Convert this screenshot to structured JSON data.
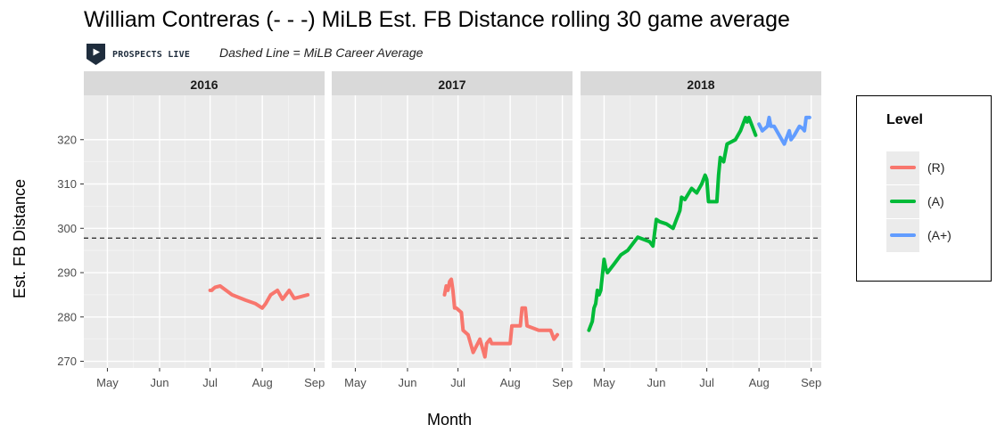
{
  "header": {
    "title": "William Contreras (- - -) MiLB Est. FB Distance rolling 30 game average",
    "subtitle": "Dashed Line = MiLB Career Average",
    "logo_text": "PROSPECTS LIVE"
  },
  "legend": {
    "title": "Level",
    "items": [
      {
        "label": "(R)",
        "color": "#F8766D"
      },
      {
        "label": "(A)",
        "color": "#00BA38"
      },
      {
        "label": "(A+)",
        "color": "#619CFF"
      }
    ]
  },
  "chart_data": {
    "type": "line",
    "facet_by": "year",
    "facets": [
      "2016",
      "2017",
      "2018"
    ],
    "xlabel": "Month",
    "ylabel": "Est. FB Distance",
    "x_ticks": [
      "May",
      "Jun",
      "Jul",
      "Aug",
      "Sep"
    ],
    "x_tick_days": [
      121,
      152,
      182,
      213,
      244
    ],
    "xlim_days": [
      107,
      250
    ],
    "y_ticks": [
      270,
      280,
      290,
      300,
      310,
      320
    ],
    "ylim": [
      268.5,
      330
    ],
    "career_average": 297.8,
    "grid": true,
    "legend_position": "right",
    "series": [
      {
        "facet": "2016",
        "level": "(R)",
        "color": "#F8766D",
        "x": [
          "Jul 1",
          "Jul 2",
          "Jul 3",
          "Jul 4",
          "Jul 7",
          "Jul 14",
          "Jul 22",
          "Jul 28",
          "Aug 1",
          "Aug 3",
          "Aug 6",
          "Aug 10",
          "Aug 13",
          "Aug 17",
          "Aug 20",
          "Aug 25",
          "Aug 28"
        ],
        "y": [
          286,
          286,
          286.4,
          286.7,
          287,
          285,
          283.8,
          283,
          282,
          283,
          285,
          286,
          284,
          286,
          284.2,
          284.7,
          285
        ]
      },
      {
        "facet": "2017",
        "level": "(R)",
        "color": "#F8766D",
        "x": [
          "Jun 23",
          "Jun 24",
          "Jun 25",
          "Jun 26",
          "Jun 27",
          "Jun 28",
          "Jun 29",
          "Jun 30",
          "Jul 3",
          "Jul 4",
          "Jul 7",
          "Jul 10",
          "Jul 14",
          "Jul 17",
          "Jul 18",
          "Jul 20",
          "Jul 21",
          "Jul 22",
          "Jul 25",
          "Aug 1",
          "Aug 2",
          "Aug 4",
          "Aug 7",
          "Aug 8",
          "Aug 10",
          "Aug 11",
          "Aug 18",
          "Aug 25",
          "Aug 27",
          "Aug 29"
        ],
        "y": [
          285,
          287,
          286,
          288,
          288.5,
          286,
          282,
          282,
          281,
          277,
          276,
          272,
          275,
          271,
          274,
          275,
          274,
          274,
          274,
          274,
          278,
          278,
          278,
          282,
          282,
          278,
          277,
          277,
          275,
          276
        ]
      },
      {
        "facet": "2018",
        "level": "(A)",
        "color": "#00BA38",
        "x": [
          "Apr 22",
          "Apr 23",
          "Apr 24",
          "Apr 25",
          "Apr 26",
          "Apr 27",
          "Apr 28",
          "Apr 29",
          "May 1",
          "May 2",
          "May 3",
          "May 7",
          "May 11",
          "May 15",
          "May 17",
          "May 19",
          "May 21",
          "May 28",
          "May 30",
          "Jun 1",
          "Jun 3",
          "Jun 7",
          "Jun 11",
          "Jun 14",
          "Jun 15",
          "Jun 16",
          "Jun 18",
          "Jun 22",
          "Jun 25",
          "Jun 28",
          "Jun 30",
          "Jul 1",
          "Jul 2",
          "Jul 3",
          "Jul 4",
          "Jul 7",
          "Jul 8",
          "Jul 9",
          "Jul 11",
          "Jul 13",
          "Jul 18",
          "Jul 21",
          "Jul 24",
          "Jul 25",
          "Jul 26",
          "Jul 28",
          "Jul 30"
        ],
        "y": [
          277,
          278,
          279,
          282,
          283,
          286,
          285,
          286,
          293,
          291,
          290,
          292,
          294,
          295,
          296,
          297,
          298,
          297,
          296,
          302,
          301.5,
          301,
          300,
          303,
          304,
          307,
          306.5,
          309,
          308,
          310,
          312,
          311,
          306,
          306,
          306,
          306,
          312,
          316,
          315,
          319,
          320,
          322,
          325,
          324,
          325,
          323,
          321
        ]
      },
      {
        "facet": "2018",
        "level": "(A+)",
        "color": "#619CFF",
        "x": [
          "Aug 1",
          "Aug 3",
          "Aug 6",
          "Aug 7",
          "Aug 8",
          "Aug 10",
          "Aug 13",
          "Aug 16",
          "Aug 18",
          "Aug 19",
          "Aug 20",
          "Aug 22",
          "Aug 25",
          "Aug 27",
          "Aug 28",
          "Aug 29",
          "Aug 31"
        ],
        "y": [
          323.5,
          322,
          323,
          325,
          323,
          323,
          321,
          319,
          321,
          322,
          320,
          321,
          323,
          322.5,
          322,
          325,
          325
        ]
      }
    ]
  }
}
